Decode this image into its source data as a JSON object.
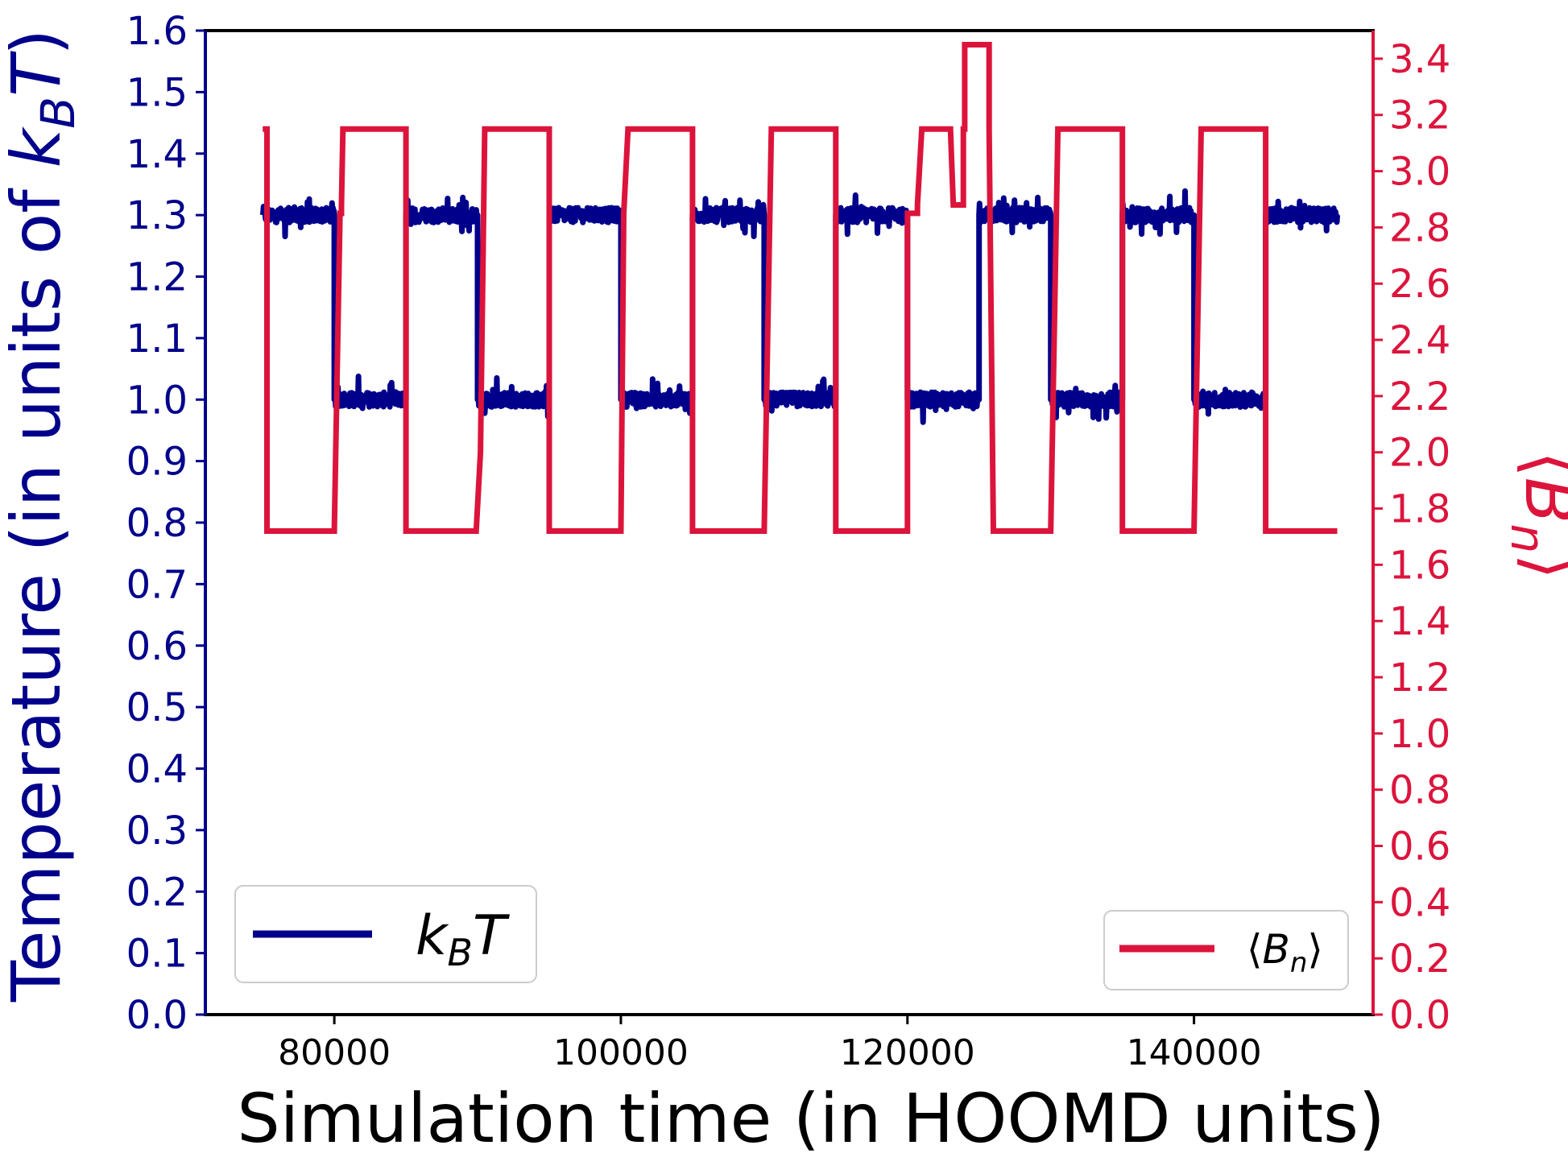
{
  "chart_data": {
    "type": "line",
    "xlabel": "Simulation time (in HOOMD units)",
    "ylabel_left": {
      "prefix": "Temperature (in units of ",
      "k": "k",
      "sub": "B",
      "T": "T",
      "suffix": ")"
    },
    "ylabel_right": {
      "open": "⟨",
      "B": "B",
      "sub": "n",
      "close": "⟩"
    },
    "xlim": [
      71000,
      152500
    ],
    "ylim_left": [
      0,
      1.6
    ],
    "ylim_right": [
      0,
      3.5
    ],
    "x_ticks": [
      80000,
      100000,
      120000,
      140000
    ],
    "y_ticks_left": [
      "0.0",
      "0.1",
      "0.2",
      "0.3",
      "0.4",
      "0.5",
      "0.6",
      "0.7",
      "0.8",
      "0.9",
      "1.0",
      "1.1",
      "1.2",
      "1.3",
      "1.4",
      "1.5",
      "1.6"
    ],
    "y_ticks_right": [
      "0.0",
      "0.2",
      "0.4",
      "0.6",
      "0.8",
      "1.0",
      "1.2",
      "1.4",
      "1.6",
      "1.8",
      "2.0",
      "2.2",
      "2.4",
      "2.6",
      "2.8",
      "3.0",
      "3.2",
      "3.4"
    ],
    "grid": false,
    "series": [
      {
        "name": {
          "k": "k",
          "sub": "B",
          "T": "T"
        },
        "axis": "left",
        "color": "#00008b",
        "noise": 0.012,
        "segments": [
          {
            "x0": 75000,
            "x1": 80000,
            "level": 1.3
          },
          {
            "x0": 80000,
            "x1": 85000,
            "level": 1.0
          },
          {
            "x0": 85000,
            "x1": 90000,
            "level": 1.3
          },
          {
            "x0": 90000,
            "x1": 95000,
            "level": 1.0
          },
          {
            "x0": 95000,
            "x1": 100000,
            "level": 1.3
          },
          {
            "x0": 100000,
            "x1": 105000,
            "level": 1.0
          },
          {
            "x0": 105000,
            "x1": 110000,
            "level": 1.3
          },
          {
            "x0": 110000,
            "x1": 115000,
            "level": 1.0
          },
          {
            "x0": 115000,
            "x1": 120000,
            "level": 1.3
          },
          {
            "x0": 120000,
            "x1": 125000,
            "level": 1.0
          },
          {
            "x0": 125000,
            "x1": 130000,
            "level": 1.3
          },
          {
            "x0": 130000,
            "x1": 135000,
            "level": 1.0
          },
          {
            "x0": 135000,
            "x1": 140000,
            "level": 1.3
          },
          {
            "x0": 140000,
            "x1": 145000,
            "level": 1.0
          },
          {
            "x0": 145000,
            "x1": 150000,
            "level": 1.3
          }
        ]
      },
      {
        "name": {
          "open": "⟨",
          "B": "B",
          "sub": "n",
          "close": "⟩"
        },
        "axis": "right",
        "color": "#dc143c",
        "x": [
          75000,
          75300,
          75300,
          80000,
          80400,
          80500,
          80500,
          80600,
          85000,
          85000,
          89900,
          90200,
          90200,
          90500,
          95000,
          95000,
          100000,
          100200,
          100200,
          100500,
          105000,
          105000,
          110000,
          110500,
          115000,
          115000,
          120000,
          120000,
          120500,
          120700,
          120700,
          121000,
          122900,
          123000,
          123200,
          123200,
          123900,
          123900,
          124000,
          124000,
          125700,
          125700,
          126000,
          130000,
          130500,
          135000,
          135000,
          140000,
          140500,
          145000,
          145000,
          150000
        ],
        "y": [
          3.15,
          3.15,
          1.72,
          1.72,
          2.85,
          2.85,
          2.88,
          3.15,
          3.15,
          1.72,
          1.72,
          2.0,
          2.0,
          3.15,
          3.15,
          1.72,
          1.72,
          2.85,
          2.85,
          3.15,
          3.15,
          1.72,
          1.72,
          3.15,
          3.15,
          1.72,
          1.72,
          2.85,
          2.85,
          2.85,
          2.88,
          3.15,
          3.15,
          3.15,
          2.88,
          2.88,
          2.88,
          3.15,
          3.15,
          3.45,
          3.45,
          3.15,
          1.72,
          1.72,
          3.15,
          3.15,
          1.72,
          1.72,
          3.15,
          3.15,
          1.72,
          1.72
        ]
      }
    ],
    "legends": [
      {
        "placement": "lower-left",
        "series": 0
      },
      {
        "placement": "lower-right",
        "series": 1
      }
    ]
  }
}
